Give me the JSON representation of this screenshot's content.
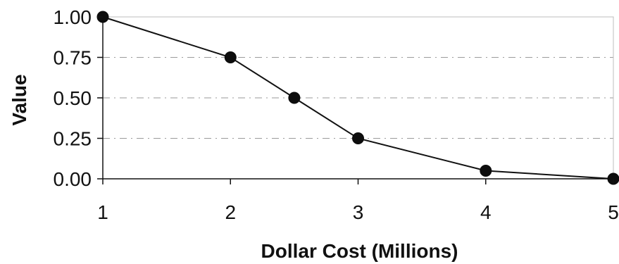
{
  "chart_data": {
    "type": "line",
    "title": "",
    "xlabel": "Dollar Cost (Millions)",
    "ylabel": "Value",
    "x_ticks": [
      "1",
      "2",
      "3",
      "4",
      "5"
    ],
    "y_ticks": [
      "1.00",
      "0.75",
      "0.50",
      "0.25",
      "0.00"
    ],
    "xlim": [
      1,
      5
    ],
    "ylim": [
      0,
      1
    ],
    "grid": true,
    "legend": "none",
    "series": [
      {
        "x": [
          1,
          2,
          2.5,
          3,
          4,
          5
        ],
        "y": [
          1.0,
          0.75,
          0.5,
          0.25,
          0.05,
          0.0
        ]
      }
    ],
    "colors": {
      "series": "#111111",
      "grid": "#9a9a9a",
      "frame": "#bdbdbd"
    }
  }
}
